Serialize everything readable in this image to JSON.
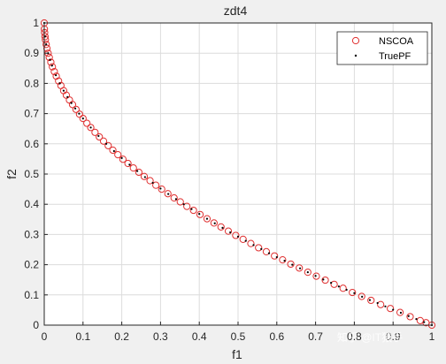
{
  "chart_data": {
    "type": "scatter",
    "title": "zdt4",
    "xlabel": "f1",
    "ylabel": "f2",
    "xlim": [
      0,
      1
    ],
    "ylim": [
      0,
      1
    ],
    "xticks": [
      "0",
      "0.1",
      "0.2",
      "0.3",
      "0.4",
      "0.5",
      "0.6",
      "0.7",
      "0.8",
      "0.9",
      "1"
    ],
    "yticks": [
      "0",
      "0.1",
      "0.2",
      "0.3",
      "0.4",
      "0.5",
      "0.6",
      "0.7",
      "0.8",
      "0.9",
      "1"
    ],
    "grid": true,
    "legend_position": "top-right",
    "series": [
      {
        "name": "NSCOA",
        "marker": "circle-open",
        "color": "#e03030",
        "x": [
          0.0,
          0.0004,
          0.001,
          0.002,
          0.003,
          0.005,
          0.007,
          0.01,
          0.013,
          0.017,
          0.021,
          0.026,
          0.031,
          0.037,
          0.043,
          0.05,
          0.057,
          0.065,
          0.073,
          0.082,
          0.091,
          0.1,
          0.11,
          0.12,
          0.131,
          0.142,
          0.153,
          0.165,
          0.177,
          0.19,
          0.203,
          0.216,
          0.23,
          0.244,
          0.258,
          0.273,
          0.288,
          0.303,
          0.319,
          0.335,
          0.351,
          0.368,
          0.385,
          0.402,
          0.42,
          0.438,
          0.456,
          0.475,
          0.494,
          0.513,
          0.533,
          0.553,
          0.573,
          0.594,
          0.615,
          0.636,
          0.658,
          0.68,
          0.702,
          0.725,
          0.748,
          0.771,
          0.795,
          0.819,
          0.843,
          0.868,
          0.893,
          0.918,
          0.944,
          0.97,
          0.985,
          1.0
        ],
        "y": [
          1.0,
          0.98,
          0.968,
          0.955,
          0.945,
          0.929,
          0.916,
          0.9,
          0.886,
          0.87,
          0.855,
          0.839,
          0.824,
          0.808,
          0.793,
          0.776,
          0.761,
          0.745,
          0.73,
          0.714,
          0.698,
          0.684,
          0.668,
          0.654,
          0.638,
          0.623,
          0.609,
          0.594,
          0.579,
          0.564,
          0.549,
          0.535,
          0.52,
          0.506,
          0.492,
          0.478,
          0.463,
          0.45,
          0.435,
          0.421,
          0.408,
          0.393,
          0.38,
          0.366,
          0.352,
          0.338,
          0.325,
          0.311,
          0.297,
          0.284,
          0.27,
          0.256,
          0.243,
          0.229,
          0.216,
          0.202,
          0.189,
          0.175,
          0.162,
          0.149,
          0.135,
          0.122,
          0.108,
          0.095,
          0.082,
          0.068,
          0.055,
          0.042,
          0.028,
          0.015,
          0.008,
          0.0
        ]
      },
      {
        "name": "TruePF",
        "marker": "dot",
        "color": "#000000",
        "x": [
          0.0,
          0.002,
          0.005,
          0.01,
          0.015,
          0.02,
          0.03,
          0.04,
          0.05,
          0.06,
          0.07,
          0.08,
          0.09,
          0.1,
          0.12,
          0.14,
          0.16,
          0.18,
          0.2,
          0.22,
          0.24,
          0.26,
          0.28,
          0.3,
          0.32,
          0.34,
          0.36,
          0.38,
          0.4,
          0.42,
          0.44,
          0.46,
          0.48,
          0.5,
          0.52,
          0.54,
          0.56,
          0.58,
          0.6,
          0.62,
          0.64,
          0.66,
          0.68,
          0.7,
          0.72,
          0.74,
          0.76,
          0.78,
          0.8,
          0.82,
          0.84,
          0.86,
          0.88,
          0.9,
          0.92,
          0.94,
          0.96,
          0.98,
          1.0
        ],
        "y": [
          1.0,
          0.955,
          0.929,
          0.9,
          0.878,
          0.859,
          0.827,
          0.8,
          0.776,
          0.755,
          0.735,
          0.717,
          0.7,
          0.684,
          0.654,
          0.626,
          0.6,
          0.576,
          0.553,
          0.531,
          0.51,
          0.49,
          0.471,
          0.452,
          0.434,
          0.417,
          0.4,
          0.384,
          0.368,
          0.352,
          0.337,
          0.322,
          0.307,
          0.293,
          0.279,
          0.265,
          0.252,
          0.238,
          0.225,
          0.213,
          0.2,
          0.188,
          0.175,
          0.163,
          0.151,
          0.14,
          0.128,
          0.117,
          0.106,
          0.094,
          0.083,
          0.073,
          0.062,
          0.051,
          0.041,
          0.03,
          0.02,
          0.01,
          0.0
        ]
      }
    ]
  },
  "watermark": "知乎 @IT猿手"
}
